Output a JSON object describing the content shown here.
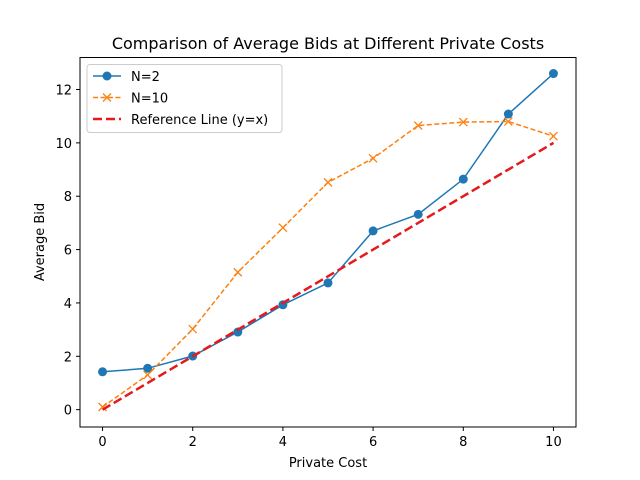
{
  "chart_data": {
    "type": "line",
    "title": "Comparison of Average Bids at Different Private Costs",
    "xlabel": "Private Cost",
    "ylabel": "Average Bid",
    "xlim": [
      -0.5,
      10.5
    ],
    "ylim": [
      -0.65,
      13.2
    ],
    "xticks": [
      0,
      2,
      4,
      6,
      8,
      10
    ],
    "yticks": [
      0,
      2,
      4,
      6,
      8,
      10,
      12
    ],
    "grid": false,
    "legend_position": "top-left",
    "series": [
      {
        "name": "N=2",
        "color": "#1f77b4",
        "marker": "circle",
        "linestyle": "solid",
        "x": [
          0,
          1,
          2,
          3,
          4,
          5,
          6,
          7,
          8,
          9,
          10
        ],
        "y": [
          1.42,
          1.55,
          2.01,
          2.91,
          3.93,
          4.75,
          6.7,
          7.32,
          8.64,
          11.08,
          12.6
        ]
      },
      {
        "name": "N=10",
        "color": "#ff7f0e",
        "marker": "x",
        "linestyle": "dashed",
        "x": [
          0,
          1,
          2,
          3,
          4,
          5,
          6,
          7,
          8,
          9,
          10
        ],
        "y": [
          0.1,
          1.3,
          3.02,
          5.15,
          6.82,
          8.52,
          9.42,
          10.65,
          10.78,
          10.8,
          10.25
        ]
      },
      {
        "name": "Reference Line (y=x)",
        "color": "#e41a1c",
        "marker": "none",
        "linestyle": "thick-dashed",
        "x": [
          0,
          10
        ],
        "y": [
          0,
          10
        ]
      }
    ]
  }
}
